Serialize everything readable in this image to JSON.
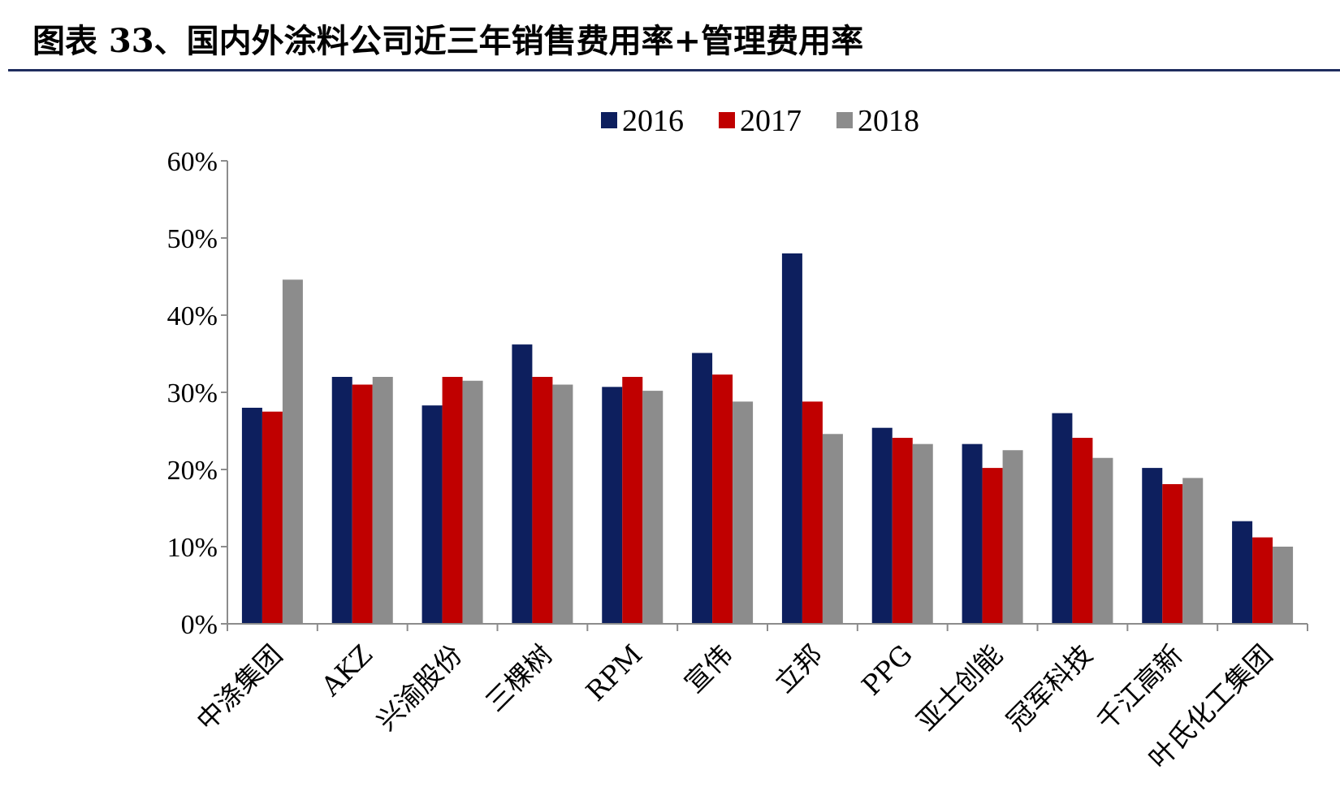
{
  "header": {
    "title": "图表  33、国内外涂料公司近三年销售费用率+管理费用率"
  },
  "colors": {
    "title_rule": "#1f2d5e",
    "axis": "#8c8c8c"
  },
  "chart_data": {
    "type": "bar",
    "categories": [
      "中涤集团",
      "AKZ",
      "兴渝股份",
      "三棵树",
      "RPM",
      "宣伟",
      "立邦",
      "PPG",
      "亚士创能",
      "冠军科技",
      "千江高新",
      "叶氏化工集团"
    ],
    "series": [
      {
        "name": "2016",
        "color": "#0d1f5e",
        "values": [
          28.0,
          32.0,
          28.3,
          36.2,
          30.7,
          35.1,
          48.0,
          25.4,
          23.3,
          27.3,
          20.2,
          13.3
        ]
      },
      {
        "name": "2017",
        "color": "#c00000",
        "values": [
          27.5,
          31.0,
          32.0,
          32.0,
          32.0,
          32.3,
          28.8,
          24.1,
          20.2,
          24.1,
          18.1,
          11.2
        ]
      },
      {
        "name": "2018",
        "color": "#8c8c8c",
        "values": [
          44.6,
          32.0,
          31.5,
          31.0,
          30.2,
          28.8,
          24.6,
          23.3,
          22.5,
          21.5,
          18.9,
          10.0
        ]
      }
    ],
    "ylim": [
      0,
      60
    ],
    "yticks": [
      "0%",
      "10%",
      "20%",
      "30%",
      "40%",
      "50%",
      "60%"
    ],
    "legend_position": "top-center",
    "grid": false
  }
}
